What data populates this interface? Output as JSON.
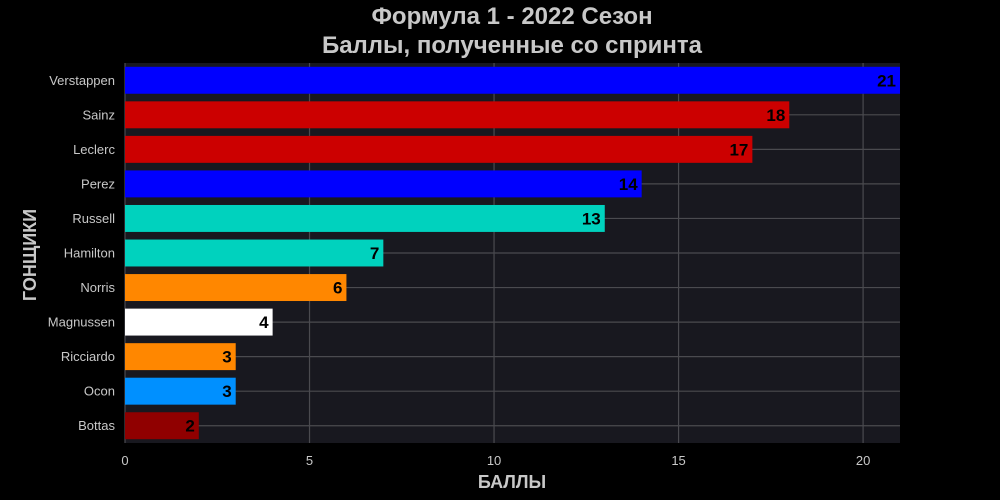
{
  "chart_data": {
    "type": "bar",
    "orientation": "horizontal",
    "title": "Формула 1 - 2022 Сезон",
    "subtitle": "Баллы, полученные со спринта",
    "xlabel": "БАЛЛЫ",
    "ylabel": "ГОНЩИКИ",
    "xlim": [
      0,
      21
    ],
    "xticks": [
      0,
      5,
      10,
      15,
      20
    ],
    "grid": true,
    "background": "#000000",
    "plot_background": "#18181f",
    "categories": [
      "Verstappen",
      "Sainz",
      "Leclerc",
      "Perez",
      "Russell",
      "Hamilton",
      "Norris",
      "Magnussen",
      "Ricciardo",
      "Ocon",
      "Bottas"
    ],
    "values": [
      21,
      18,
      17,
      14,
      13,
      7,
      6,
      4,
      3,
      3,
      2
    ],
    "colors": [
      "#0000ff",
      "#cc0000",
      "#cc0000",
      "#0000ff",
      "#00d2be",
      "#00d2be",
      "#ff8700",
      "#ffffff",
      "#ff8700",
      "#0090ff",
      "#900000"
    ]
  }
}
